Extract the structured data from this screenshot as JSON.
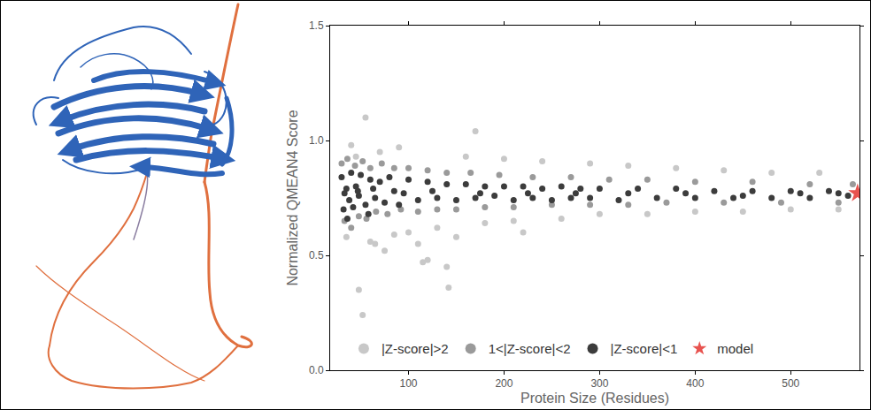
{
  "chart_data": {
    "type": "scatter",
    "x_label": "Protein Size (Residues)",
    "y_label": "Normalized QMEAN4 Score",
    "xlim": [
      18,
      572
    ],
    "xticks": [
      100,
      200,
      300,
      400,
      500
    ],
    "ylim": [
      0,
      1.5
    ],
    "yticks": [
      {
        "value": 0,
        "label": "0.0"
      },
      {
        "value": 0.5,
        "label": "0.5"
      },
      {
        "value": 1,
        "label": "1.0"
      },
      {
        "value": 1.5,
        "label": "1.5"
      }
    ],
    "grid": false,
    "legend": "bottom",
    "series": [
      {
        "name": "|Z-score|>2",
        "color": "#c8c8c8",
        "marker": "circle",
        "x": [
          40,
          55,
          60,
          70,
          75,
          90,
          100,
          110,
          115,
          120,
          130,
          140,
          142,
          150,
          160,
          170,
          180,
          200,
          210,
          220,
          240,
          260,
          290,
          300,
          330,
          350,
          380,
          400,
          430,
          450,
          480,
          500,
          530,
          550,
          48,
          52,
          35,
          45,
          65,
          85
        ],
        "values": [
          0.98,
          1.1,
          0.56,
          0.95,
          0.52,
          0.97,
          0.6,
          0.55,
          0.47,
          0.48,
          0.62,
          0.45,
          0.36,
          0.58,
          0.93,
          1.04,
          0.64,
          0.92,
          0.65,
          0.6,
          0.91,
          0.66,
          0.9,
          0.68,
          0.89,
          0.68,
          0.88,
          0.69,
          0.87,
          0.69,
          0.86,
          0.7,
          0.86,
          0.7,
          0.35,
          0.24,
          0.58,
          0.93,
          0.55,
          0.59
        ]
      },
      {
        "name": "1<|Z-score|<2",
        "color": "#9a9a9a",
        "marker": "circle",
        "x": [
          30,
          33,
          36,
          40,
          44,
          48,
          52,
          56,
          60,
          66,
          72,
          78,
          85,
          92,
          100,
          110,
          120,
          130,
          140,
          150,
          165,
          180,
          195,
          210,
          230,
          250,
          270,
          290,
          310,
          330,
          350,
          370,
          400,
          430,
          460,
          490,
          520,
          550,
          565
        ],
        "values": [
          0.9,
          0.65,
          0.92,
          0.62,
          0.89,
          0.67,
          0.91,
          0.66,
          0.88,
          0.69,
          0.9,
          0.68,
          0.88,
          0.7,
          0.88,
          0.69,
          0.87,
          0.7,
          0.86,
          0.7,
          0.86,
          0.71,
          0.85,
          0.71,
          0.84,
          0.72,
          0.84,
          0.72,
          0.83,
          0.72,
          0.83,
          0.73,
          0.82,
          0.73,
          0.82,
          0.73,
          0.81,
          0.73,
          0.81
        ]
      },
      {
        "name": "|Z-score|<1",
        "color": "#3c3c3c",
        "marker": "circle",
        "x": [
          30,
          32,
          35,
          38,
          40,
          42,
          45,
          48,
          50,
          55,
          60,
          65,
          70,
          75,
          80,
          85,
          90,
          100,
          110,
          120,
          130,
          140,
          150,
          160,
          170,
          180,
          190,
          200,
          210,
          220,
          230,
          240,
          250,
          260,
          270,
          280,
          290,
          300,
          320,
          340,
          360,
          380,
          400,
          420,
          440,
          460,
          480,
          500,
          520,
          540,
          560,
          33,
          47,
          63,
          95,
          125,
          175,
          225,
          275,
          330,
          390,
          450,
          510,
          550,
          36,
          58
        ],
        "values": [
          0.84,
          0.7,
          0.79,
          0.74,
          0.86,
          0.71,
          0.8,
          0.76,
          0.85,
          0.72,
          0.83,
          0.75,
          0.82,
          0.73,
          0.84,
          0.78,
          0.72,
          0.83,
          0.74,
          0.82,
          0.75,
          0.81,
          0.74,
          0.81,
          0.75,
          0.8,
          0.76,
          0.8,
          0.74,
          0.8,
          0.75,
          0.79,
          0.74,
          0.8,
          0.75,
          0.79,
          0.75,
          0.79,
          0.74,
          0.79,
          0.75,
          0.79,
          0.75,
          0.78,
          0.75,
          0.78,
          0.75,
          0.78,
          0.75,
          0.78,
          0.76,
          0.77,
          0.78,
          0.79,
          0.77,
          0.78,
          0.77,
          0.77,
          0.77,
          0.77,
          0.77,
          0.76,
          0.77,
          0.77,
          0.66,
          0.68
        ]
      },
      {
        "name": "model",
        "color": "#e8534f",
        "marker": "star",
        "x": [
          570
        ],
        "values": [
          0.77
        ]
      }
    ]
  }
}
